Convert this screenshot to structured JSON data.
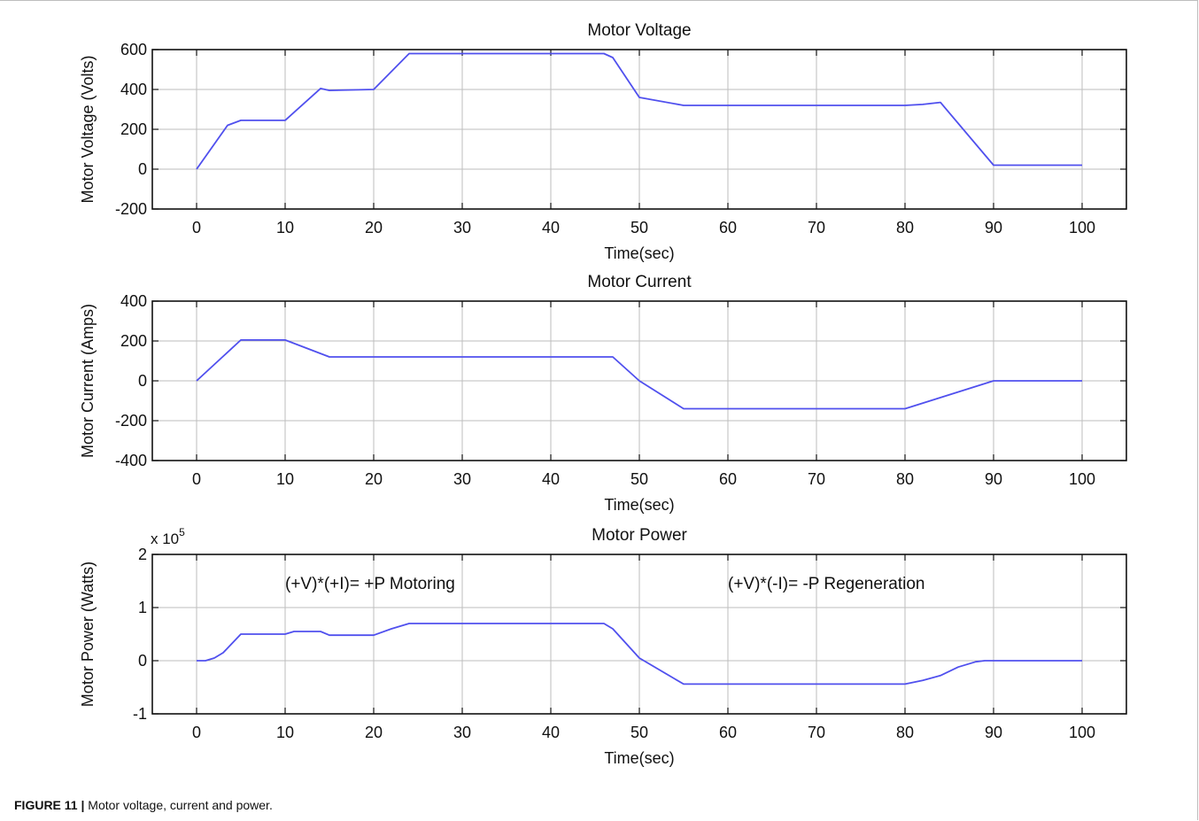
{
  "caption": {
    "label": "FIGURE 11 |",
    "text": "Motor voltage, current and power."
  },
  "colors": {
    "line": "#5050ee",
    "grid": "#bdbdbd",
    "axis": "#111111"
  },
  "chart_data": [
    {
      "type": "line",
      "title": "Motor Voltage",
      "xlabel": "Time(sec)",
      "ylabel": "Motor Voltage (Volts)",
      "xlim": [
        -5,
        105
      ],
      "ylim": [
        -200,
        600
      ],
      "xticks": [
        0,
        10,
        20,
        30,
        40,
        50,
        60,
        70,
        80,
        90,
        100
      ],
      "yticks": [
        -200,
        0,
        200,
        400,
        600
      ],
      "yticklabels": [
        "-200",
        "0",
        "200",
        "400",
        "600"
      ],
      "grid": true,
      "series": [
        {
          "x": [
            0,
            3.5,
            5,
            10,
            14,
            15,
            20,
            24,
            46,
            47,
            50,
            55,
            80,
            82,
            84,
            90,
            100
          ],
          "y": [
            0,
            220,
            245,
            245,
            405,
            395,
            400,
            580,
            580,
            560,
            360,
            320,
            320,
            325,
            335,
            20,
            20
          ]
        }
      ]
    },
    {
      "type": "line",
      "title": "Motor Current",
      "xlabel": "Time(sec)",
      "ylabel": "Motor Current (Amps)",
      "xlim": [
        -5,
        105
      ],
      "ylim": [
        -400,
        400
      ],
      "xticks": [
        0,
        10,
        20,
        30,
        40,
        50,
        60,
        70,
        80,
        90,
        100
      ],
      "yticks": [
        -400,
        -200,
        0,
        200,
        400
      ],
      "yticklabels": [
        "-400",
        "-200",
        "0",
        "200",
        "400"
      ],
      "grid": true,
      "series": [
        {
          "x": [
            0,
            5,
            10,
            15,
            47,
            50,
            55,
            80,
            90,
            100
          ],
          "y": [
            0,
            205,
            205,
            120,
            120,
            0,
            -140,
            -140,
            0,
            0
          ]
        }
      ]
    },
    {
      "type": "line",
      "title": "Motor Power",
      "xlabel": "Time(sec)",
      "ylabel": "Motor Power (Watts)",
      "xlim": [
        -5,
        105
      ],
      "ylim": [
        -1,
        2
      ],
      "yscale_label": "x 10",
      "yscale_exp": "5",
      "xticks": [
        0,
        10,
        20,
        30,
        40,
        50,
        60,
        70,
        80,
        90,
        100
      ],
      "yticks": [
        -1,
        0,
        1,
        2
      ],
      "yticklabels": [
        "-1",
        "0",
        "1",
        "2"
      ],
      "grid": true,
      "annotations": [
        {
          "text": "(+V)*(+I)= +P Motoring",
          "x": 10,
          "y": 1.45
        },
        {
          "text": "(+V)*(-I)= -P Regeneration",
          "x": 60,
          "y": 1.45
        }
      ],
      "series": [
        {
          "x": [
            0,
            1,
            2,
            3,
            5,
            10,
            11,
            14,
            15,
            20,
            22,
            24,
            46,
            47,
            50,
            55,
            80,
            82,
            84,
            86,
            88,
            89,
            90,
            100
          ],
          "y": [
            0,
            0,
            0.05,
            0.15,
            0.5,
            0.5,
            0.55,
            0.55,
            0.48,
            0.48,
            0.6,
            0.7,
            0.7,
            0.6,
            0.05,
            -0.44,
            -0.44,
            -0.37,
            -0.28,
            -0.12,
            -0.02,
            0,
            0,
            0
          ]
        }
      ]
    }
  ]
}
